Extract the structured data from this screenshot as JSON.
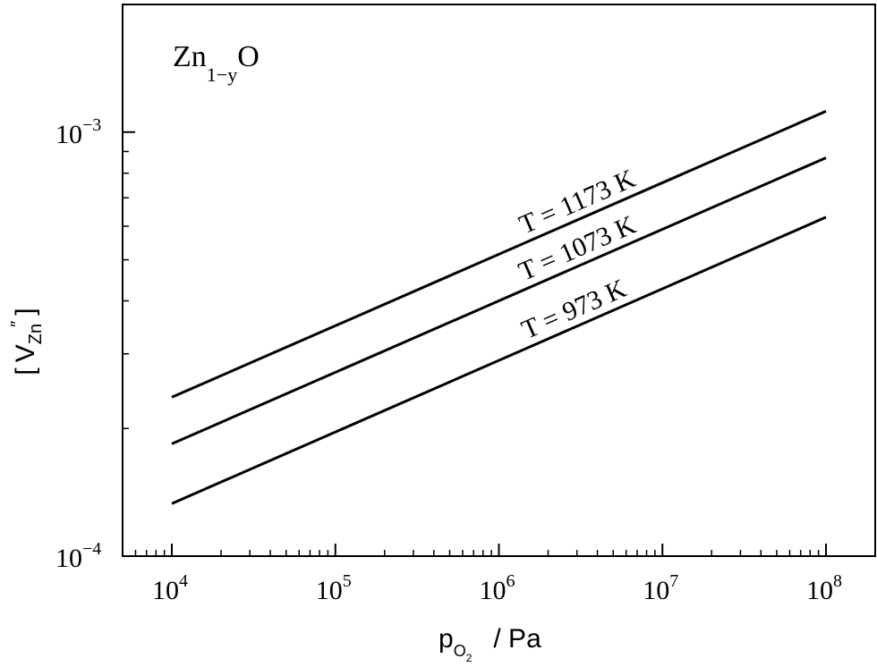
{
  "chart_data": {
    "type": "line",
    "title": "",
    "annotation": {
      "base": "Zn",
      "subscript": "1−y",
      "suffix": "O"
    },
    "xlabel": {
      "base": "p",
      "subscript": "O",
      "subsubscript": "2",
      "unit": "/ Pa"
    },
    "ylabel": {
      "open": "[",
      "main": "V",
      "sub": "Zn",
      "sup": "″",
      "close": "]"
    },
    "x_scale": "log",
    "y_scale": "log",
    "xlim": [
      5000,
      200000000
    ],
    "ylim": [
      0.0001,
      0.002
    ],
    "x_ticks": [
      {
        "value": 10000,
        "base": "10",
        "exp": "4"
      },
      {
        "value": 100000,
        "base": "10",
        "exp": "5"
      },
      {
        "value": 1000000,
        "base": "10",
        "exp": "6"
      },
      {
        "value": 10000000,
        "base": "10",
        "exp": "7"
      },
      {
        "value": 100000000,
        "base": "10",
        "exp": "8"
      }
    ],
    "y_ticks": [
      {
        "value": 0.0001,
        "base": "10",
        "exp": "−4"
      },
      {
        "value": 0.001,
        "base": "10",
        "exp": "−3"
      }
    ],
    "grid": false,
    "series": [
      {
        "label": "T = 1173 K",
        "x": [
          10000,
          100000000
        ],
        "y": [
          0.000237,
          0.00112
        ]
      },
      {
        "label": "T = 1073 K",
        "x": [
          10000,
          100000000
        ],
        "y": [
          0.000184,
          0.00087
        ]
      },
      {
        "label": "T = 973 K",
        "x": [
          10000,
          100000000
        ],
        "y": [
          0.000133,
          0.00063
        ]
      }
    ]
  }
}
